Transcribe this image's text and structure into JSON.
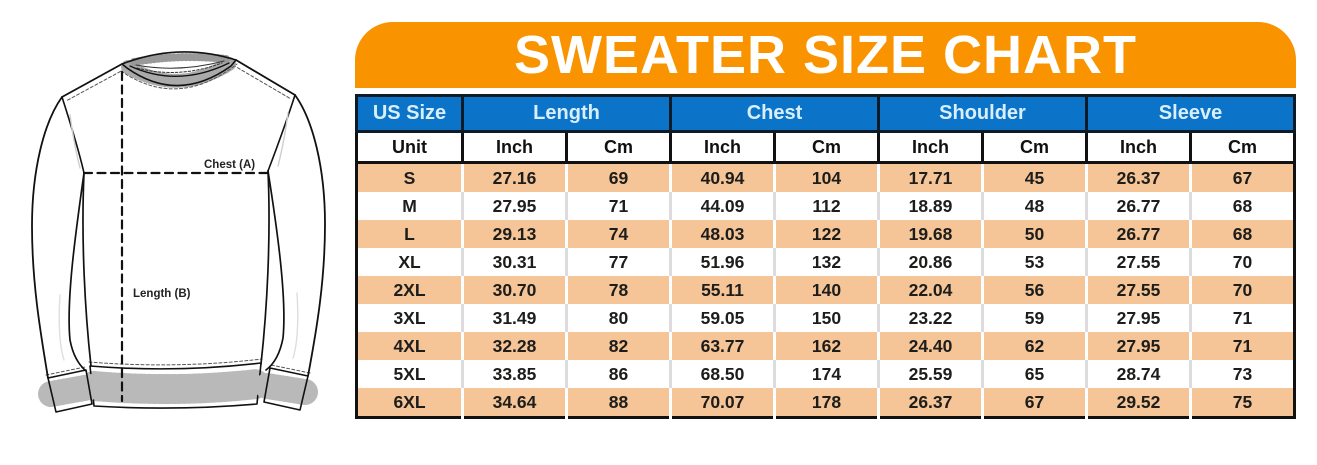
{
  "colors": {
    "banner_orange": "#F99400",
    "header_blue": "#0C74C8",
    "header_blue_border": "#0D1B28",
    "header_text_blue": "#D9EFFD",
    "row_peach": "#F5C497",
    "table_border": "#111111",
    "text_dark": "#1D1D1B",
    "separator_white": "#FFFFFF",
    "separator_gray": "#DCDCDC"
  },
  "diagram": {
    "chest_label": "Chest (A)",
    "length_label": "Length (B)"
  },
  "chart_data": {
    "type": "table",
    "title": "SWEATER SIZE CHART",
    "column_groups": [
      "US Size",
      "Length",
      "Chest",
      "Shoulder",
      "Sleeve"
    ],
    "unit_row": [
      "Unit",
      "Inch",
      "Cm",
      "Inch",
      "Cm",
      "Inch",
      "Cm",
      "Inch",
      "Cm"
    ],
    "rows": [
      [
        "S",
        "27.16",
        "69",
        "40.94",
        "104",
        "17.71",
        "45",
        "26.37",
        "67"
      ],
      [
        "M",
        "27.95",
        "71",
        "44.09",
        "112",
        "18.89",
        "48",
        "26.77",
        "68"
      ],
      [
        "L",
        "29.13",
        "74",
        "48.03",
        "122",
        "19.68",
        "50",
        "26.77",
        "68"
      ],
      [
        "XL",
        "30.31",
        "77",
        "51.96",
        "132",
        "20.86",
        "53",
        "27.55",
        "70"
      ],
      [
        "2XL",
        "30.70",
        "78",
        "55.11",
        "140",
        "22.04",
        "56",
        "27.55",
        "70"
      ],
      [
        "3XL",
        "31.49",
        "80",
        "59.05",
        "150",
        "23.22",
        "59",
        "27.95",
        "71"
      ],
      [
        "4XL",
        "32.28",
        "82",
        "63.77",
        "162",
        "24.40",
        "62",
        "27.95",
        "71"
      ],
      [
        "5XL",
        "33.85",
        "86",
        "68.50",
        "174",
        "25.59",
        "65",
        "28.74",
        "73"
      ],
      [
        "6XL",
        "34.64",
        "88",
        "70.07",
        "178",
        "26.37",
        "67",
        "29.52",
        "75"
      ]
    ]
  }
}
